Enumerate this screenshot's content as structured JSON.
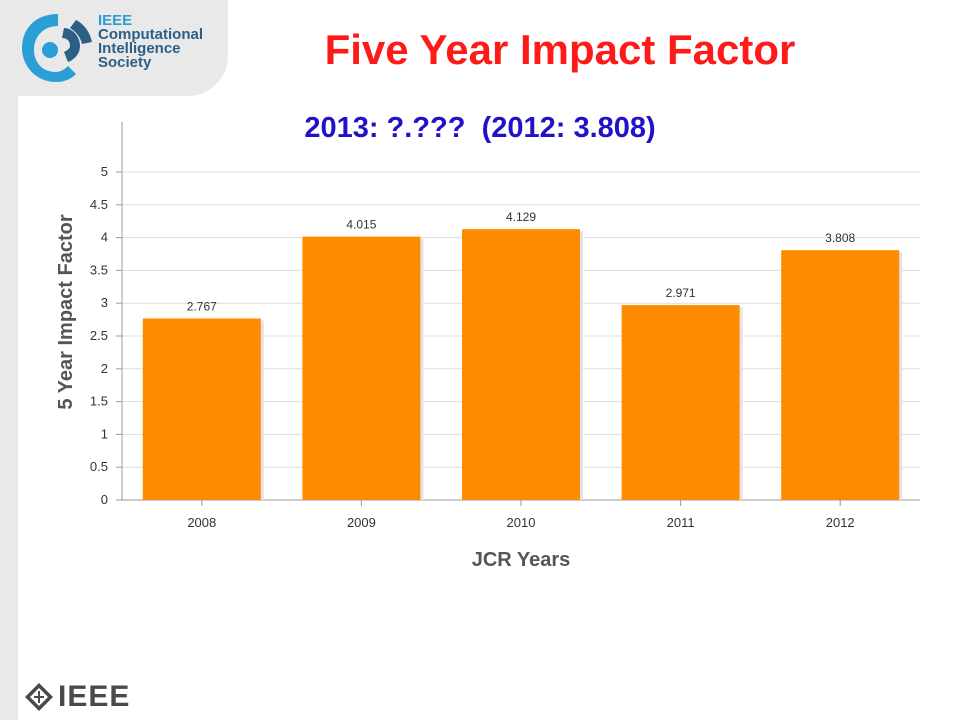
{
  "header": {
    "logo_lines": [
      "IEEE",
      "Computational",
      "Intelligence",
      "Society"
    ],
    "title": "Five Year Impact Factor",
    "subtitle": "2013: ?.???  (2012: 3.808)"
  },
  "footer": {
    "brand": "IEEE"
  },
  "colors": {
    "bar": "#ff8c00",
    "title": "#ff1a1a",
    "subtitle": "#1f12c8",
    "logo_blue": "#2a9fd6",
    "logo_dark": "#2c5f86"
  },
  "chart_data": {
    "type": "bar",
    "categories": [
      "2008",
      "2009",
      "2010",
      "2011",
      "2012"
    ],
    "values": [
      2.767,
      4.015,
      4.129,
      2.971,
      3.808
    ],
    "data_labels": [
      "2.767",
      "4.015",
      "4.129",
      "2.971",
      "3.808"
    ],
    "ylabel": "5 Year Impact Factor",
    "xlabel": "JCR Years",
    "ylim": [
      0,
      5
    ],
    "yticks": [
      "0",
      "0.5",
      "1",
      "1.5",
      "2",
      "2.5",
      "3",
      "3.5",
      "4",
      "4.5",
      "5"
    ],
    "grid": true,
    "legend": "none"
  }
}
